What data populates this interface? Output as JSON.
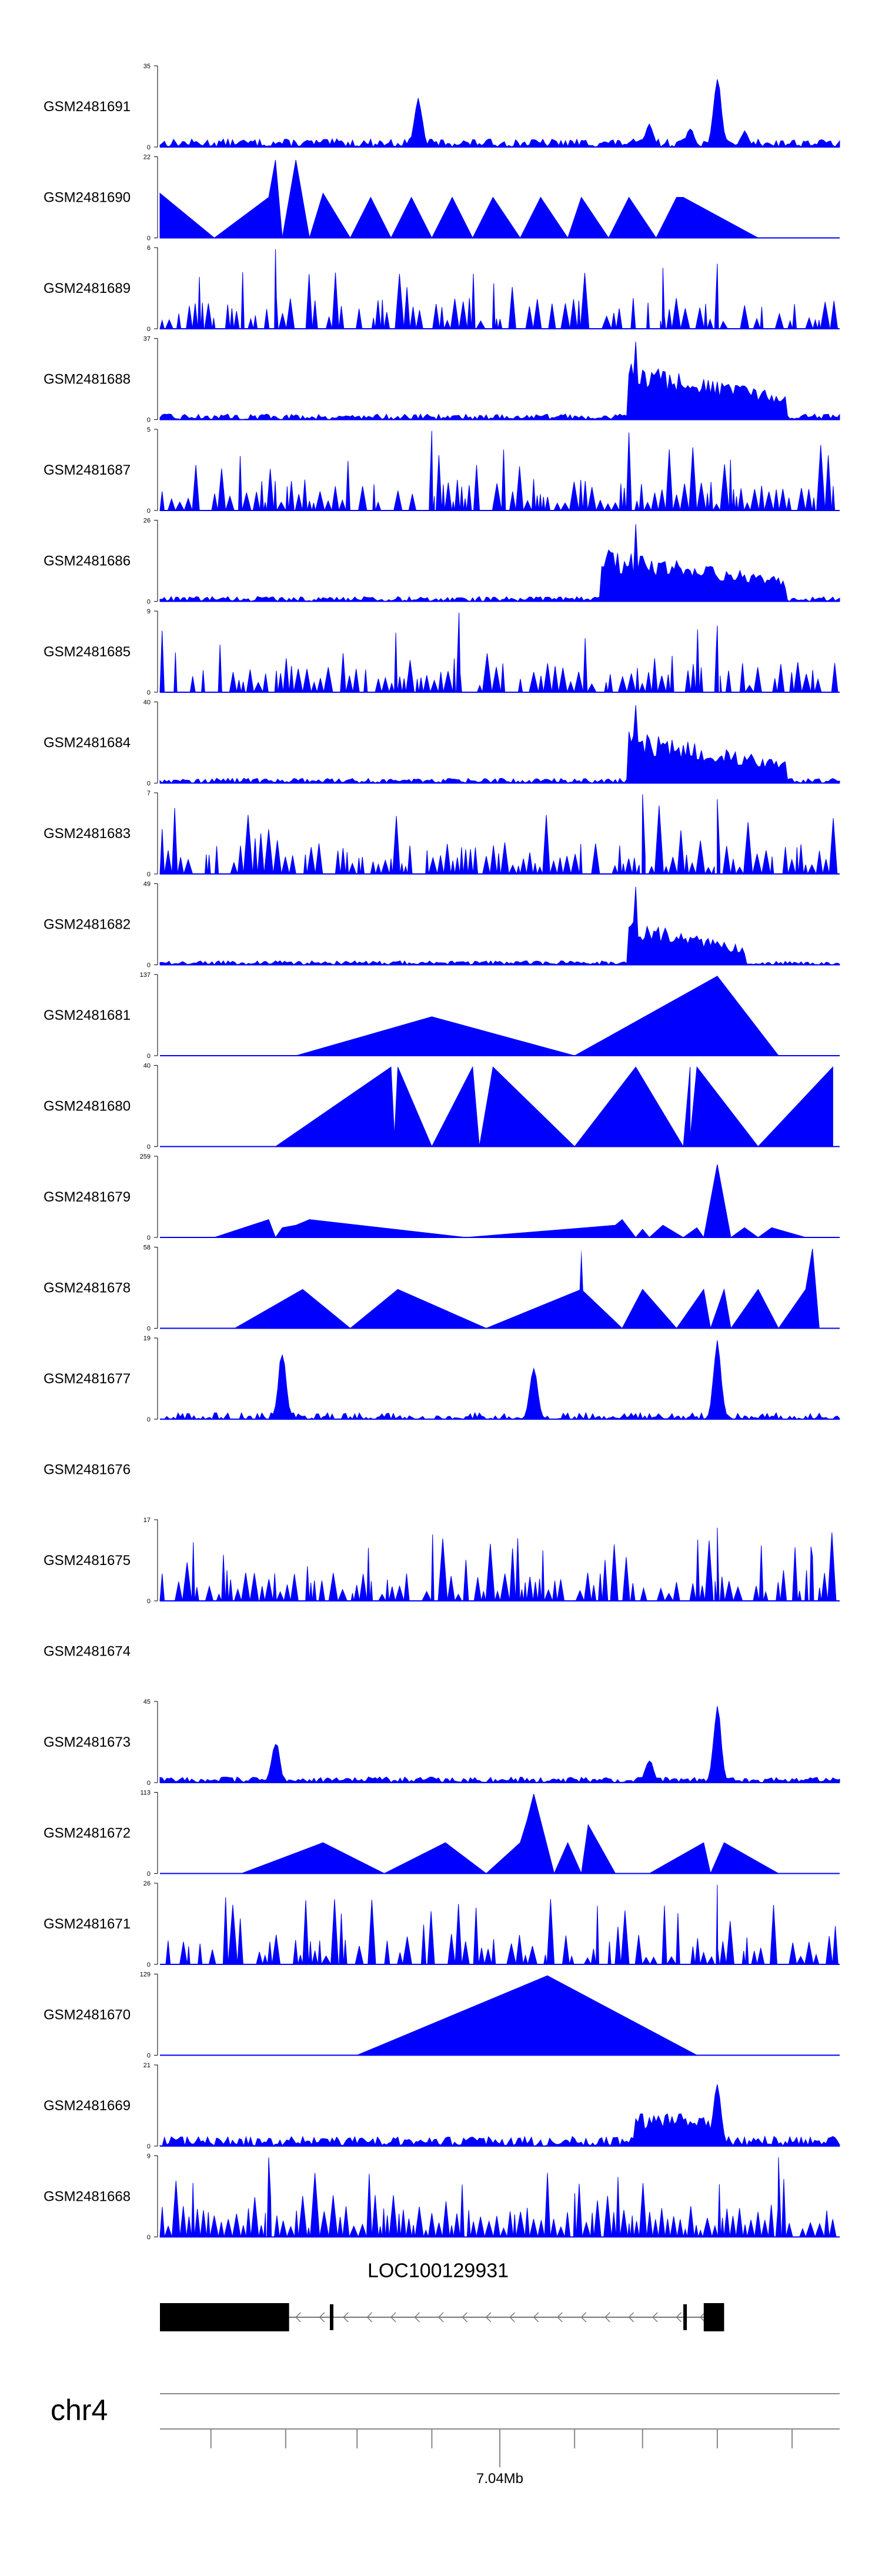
{
  "chart_data": {
    "type": "area",
    "title": "",
    "color": "#0000ff",
    "tracks": [
      {
        "name": "GSM2481691",
        "ymax": "35",
        "peaks": [
          [
            0.12,
            0.08
          ],
          [
            0.38,
            0.62
          ],
          [
            0.72,
            0.3
          ],
          [
            0.78,
            0.24
          ],
          [
            0.82,
            0.92
          ],
          [
            0.86,
            0.2
          ]
        ],
        "noise": 0.1
      },
      {
        "name": "GSM2481690",
        "ymax": "22",
        "spikes": [
          [
            0.0,
            0.55
          ],
          [
            0.08,
            0.0
          ],
          [
            0.16,
            0.5
          ],
          [
            0.17,
            0.96
          ],
          [
            0.18,
            0.0
          ],
          [
            0.2,
            0.96
          ],
          [
            0.22,
            0.0
          ],
          [
            0.24,
            0.55
          ],
          [
            0.28,
            0.0
          ],
          [
            0.31,
            0.5
          ],
          [
            0.34,
            0.0
          ],
          [
            0.37,
            0.5
          ],
          [
            0.4,
            0.0
          ],
          [
            0.43,
            0.5
          ],
          [
            0.46,
            0.0
          ],
          [
            0.49,
            0.5
          ],
          [
            0.53,
            0.0
          ],
          [
            0.56,
            0.5
          ],
          [
            0.6,
            0.0
          ],
          [
            0.62,
            0.5
          ],
          [
            0.66,
            0.0
          ],
          [
            0.69,
            0.5
          ],
          [
            0.73,
            0.0
          ],
          [
            0.76,
            0.5
          ],
          [
            0.77,
            0.5
          ],
          [
            0.88,
            0.0
          ]
        ]
      },
      {
        "name": "GSM2481689",
        "ymax": "6",
        "sparse": true,
        "seed": 11,
        "density": 0.55,
        "hi": [
          [
            0.17,
            0.98
          ],
          [
            0.74,
            0.75
          ],
          [
            0.82,
            0.8
          ]
        ]
      },
      {
        "name": "GSM2481688",
        "ymax": "37",
        "block": [
          0.69,
          0.92
        ],
        "blockH": 0.7,
        "noise": 0.07,
        "hi": [
          [
            0.7,
            0.96
          ]
        ]
      },
      {
        "name": "GSM2481687",
        "ymax": "5",
        "sparse": true,
        "seed": 23,
        "density": 0.75,
        "hi": [
          [
            0.4,
            0.98
          ],
          [
            0.69,
            0.96
          ]
        ]
      },
      {
        "name": "GSM2481686",
        "ymax": "26",
        "block": [
          0.65,
          0.92
        ],
        "blockH": 0.65,
        "noise": 0.06,
        "hi": [
          [
            0.7,
            0.95
          ]
        ]
      },
      {
        "name": "GSM2481685",
        "ymax": "9",
        "sparse": true,
        "seed": 31,
        "density": 0.75,
        "hi": [
          [
            0.44,
            0.98
          ],
          [
            0.82,
            0.82
          ]
        ]
      },
      {
        "name": "GSM2481684",
        "ymax": "40",
        "block": [
          0.69,
          0.92
        ],
        "blockH": 0.65,
        "noise": 0.06,
        "hi": [
          [
            0.7,
            0.96
          ]
        ]
      },
      {
        "name": "GSM2481683",
        "ymax": "7",
        "sparse": true,
        "seed": 47,
        "density": 0.85,
        "hi": [
          [
            0.71,
            0.98
          ],
          [
            0.82,
            0.92
          ]
        ]
      },
      {
        "name": "GSM2481682",
        "ymax": "49",
        "block": [
          0.69,
          0.86
        ],
        "blockH": 0.55,
        "noise": 0.05,
        "hi": [
          [
            0.7,
            0.96
          ]
        ]
      },
      {
        "name": "GSM2481681",
        "ymax": "137",
        "spikes": [
          [
            0.2,
            0.0
          ],
          [
            0.4,
            0.48
          ],
          [
            0.61,
            0.0
          ],
          [
            0.82,
            0.98
          ],
          [
            0.91,
            0.0
          ]
        ]
      },
      {
        "name": "GSM2481680",
        "ymax": "40",
        "spikes": [
          [
            0.17,
            0.0
          ],
          [
            0.34,
            0.98
          ],
          [
            0.345,
            0.12
          ],
          [
            0.35,
            0.98
          ],
          [
            0.4,
            0.0
          ],
          [
            0.46,
            0.98
          ],
          [
            0.47,
            0.0
          ],
          [
            0.49,
            0.98
          ],
          [
            0.61,
            0.0
          ],
          [
            0.7,
            0.98
          ],
          [
            0.77,
            0.0
          ],
          [
            0.78,
            0.98
          ],
          [
            0.78,
            0.1
          ],
          [
            0.79,
            0.98
          ],
          [
            0.88,
            0.0
          ],
          [
            0.99,
            0.98
          ],
          [
            0.99,
            0.0
          ]
        ]
      },
      {
        "name": "GSM2481679",
        "ymax": "259",
        "spikes": [
          [
            0.08,
            0.0
          ],
          [
            0.16,
            0.22
          ],
          [
            0.17,
            0.0
          ],
          [
            0.18,
            0.12
          ],
          [
            0.2,
            0.15
          ],
          [
            0.22,
            0.22
          ],
          [
            0.45,
            0.0
          ],
          [
            0.67,
            0.15
          ],
          [
            0.68,
            0.22
          ],
          [
            0.7,
            0.0
          ],
          [
            0.71,
            0.1
          ],
          [
            0.72,
            0.0
          ],
          [
            0.74,
            0.15
          ],
          [
            0.77,
            0.0
          ],
          [
            0.79,
            0.12
          ],
          [
            0.8,
            0.0
          ],
          [
            0.82,
            0.9
          ],
          [
            0.84,
            0.0
          ],
          [
            0.86,
            0.12
          ],
          [
            0.88,
            0.0
          ],
          [
            0.9,
            0.12
          ],
          [
            0.95,
            0.0
          ]
        ]
      },
      {
        "name": "GSM2481678",
        "ymax": "58",
        "spikes": [
          [
            0.11,
            0.0
          ],
          [
            0.21,
            0.48
          ],
          [
            0.28,
            0.0
          ],
          [
            0.35,
            0.48
          ],
          [
            0.48,
            0.0
          ],
          [
            0.62,
            0.48
          ],
          [
            0.68,
            0.0
          ],
          [
            0.71,
            0.48
          ],
          [
            0.76,
            0.0
          ],
          [
            0.8,
            0.48
          ],
          [
            0.81,
            0.0
          ],
          [
            0.83,
            0.48
          ],
          [
            0.84,
            0.0
          ],
          [
            0.88,
            0.48
          ],
          [
            0.91,
            0.0
          ],
          [
            0.95,
            0.48
          ],
          [
            0.96,
            0.98
          ],
          [
            0.97,
            0.0
          ]
        ],
        "extra": [
          [
            0.62,
            0.98
          ]
        ]
      },
      {
        "name": "GSM2481677",
        "ymax": "19",
        "peaks": [
          [
            0.18,
            0.85
          ],
          [
            0.55,
            0.68
          ],
          [
            0.82,
            0.98
          ]
        ],
        "noise": 0.08,
        "sparseNoise": true
      },
      {
        "name": "GSM2481676",
        "ymax": "",
        "empty": true
      },
      {
        "name": "GSM2481675",
        "ymax": "17",
        "sparse": true,
        "seed": 59,
        "density": 0.65,
        "hi": [
          [
            0.82,
            0.9
          ],
          [
            0.96,
            0.55
          ]
        ]
      },
      {
        "name": "GSM2481674",
        "ymax": "",
        "empty": true
      },
      {
        "name": "GSM2481673",
        "ymax": "45",
        "peaks": [
          [
            0.17,
            0.55
          ],
          [
            0.72,
            0.3
          ],
          [
            0.82,
            0.95
          ]
        ],
        "noise": 0.07
      },
      {
        "name": "GSM2481672",
        "ymax": "113",
        "spikes": [
          [
            0.12,
            0.0
          ],
          [
            0.24,
            0.38
          ],
          [
            0.33,
            0.0
          ],
          [
            0.42,
            0.38
          ],
          [
            0.48,
            0.0
          ],
          [
            0.53,
            0.38
          ],
          [
            0.54,
            0.65
          ],
          [
            0.55,
            0.98
          ],
          [
            0.58,
            0.0
          ],
          [
            0.6,
            0.38
          ],
          [
            0.62,
            0.0
          ],
          [
            0.63,
            0.6
          ],
          [
            0.67,
            0.0
          ],
          [
            0.72,
            0.0
          ],
          [
            0.8,
            0.38
          ],
          [
            0.81,
            0.0
          ],
          [
            0.83,
            0.38
          ],
          [
            0.91,
            0.0
          ]
        ]
      },
      {
        "name": "GSM2481671",
        "ymax": "26",
        "sparse": true,
        "seed": 71,
        "density": 0.55,
        "hi": [
          [
            0.82,
            0.98
          ]
        ]
      },
      {
        "name": "GSM2481670",
        "ymax": "129",
        "spikes": [
          [
            0.29,
            0.0
          ],
          [
            0.57,
            0.98
          ],
          [
            0.79,
            0.0
          ]
        ]
      },
      {
        "name": "GSM2481669",
        "ymax": "21",
        "peaks": [
          [
            0.82,
            0.8
          ],
          [
            0.78,
            0.3
          ]
        ],
        "noise": 0.12,
        "ramp": [
          0.7,
          0.82
        ]
      },
      {
        "name": "GSM2481668",
        "ymax": "9",
        "sparse": true,
        "seed": 89,
        "density": 0.95,
        "hi": [
          [
            0.16,
            0.98
          ],
          [
            0.91,
            0.98
          ]
        ]
      }
    ],
    "gene": {
      "label": "LOC100129931",
      "exons": [
        [
          0.0,
          0.19
        ],
        [
          0.25,
          0.255
        ],
        [
          0.77,
          0.775
        ],
        [
          0.8,
          0.83
        ]
      ],
      "strand": "-"
    },
    "axis": {
      "chromosome": "chr4",
      "tick_label": "7.04Mb",
      "tick_label_pos": 0.5,
      "ticks": [
        0.075,
        0.185,
        0.29,
        0.4,
        0.5,
        0.61,
        0.71,
        0.82,
        0.93
      ]
    }
  }
}
